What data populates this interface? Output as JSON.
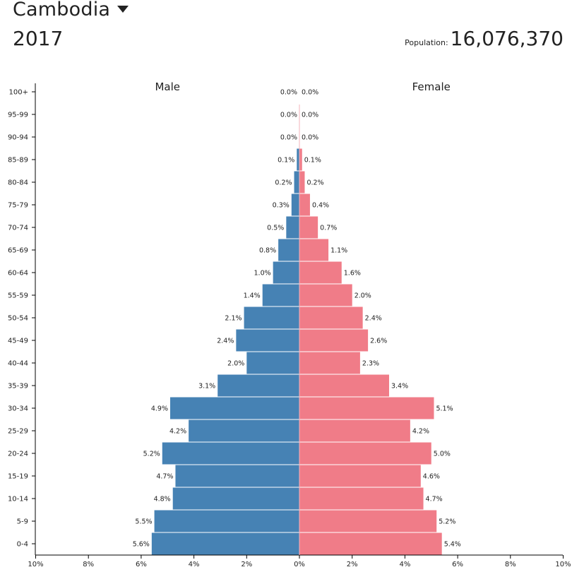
{
  "header": {
    "country": "Cambodia",
    "year": "2017",
    "population_label": "Population:",
    "population_value": "16,076,370"
  },
  "colors": {
    "male": "#4682b4",
    "female": "#f07c88"
  },
  "chart_data": {
    "type": "bar",
    "orientation": "horizontal-population-pyramid",
    "categories": [
      "0-4",
      "5-9",
      "10-14",
      "15-19",
      "20-24",
      "25-29",
      "30-34",
      "35-39",
      "40-44",
      "45-49",
      "50-54",
      "55-59",
      "60-64",
      "65-69",
      "70-74",
      "75-79",
      "80-84",
      "85-89",
      "90-94",
      "95-99",
      "100+"
    ],
    "series": [
      {
        "name": "Male",
        "values": [
          5.6,
          5.5,
          4.8,
          4.7,
          5.2,
          4.2,
          4.9,
          3.1,
          2.0,
          2.4,
          2.1,
          1.4,
          1.0,
          0.8,
          0.5,
          0.3,
          0.2,
          0.1,
          0.0,
          0.0,
          0.0
        ],
        "labels": [
          "5.6%",
          "5.5%",
          "4.8%",
          "4.7%",
          "5.2%",
          "4.2%",
          "4.9%",
          "3.1%",
          "2.0%",
          "2.4%",
          "2.1%",
          "1.4%",
          "1.0%",
          "0.8%",
          "0.5%",
          "0.3%",
          "0.2%",
          "0.1%",
          "0.0%",
          "0.0%",
          "0.0%"
        ]
      },
      {
        "name": "Female",
        "values": [
          5.4,
          5.2,
          4.7,
          4.6,
          5.0,
          4.2,
          5.1,
          3.4,
          2.3,
          2.6,
          2.4,
          2.0,
          1.6,
          1.1,
          0.7,
          0.4,
          0.2,
          0.1,
          0.0,
          0.0,
          0.0
        ],
        "labels": [
          "5.4%",
          "5.2%",
          "4.7%",
          "4.6%",
          "5.0%",
          "4.2%",
          "5.1%",
          "3.4%",
          "2.3%",
          "2.6%",
          "2.4%",
          "2.0%",
          "1.6%",
          "1.1%",
          "0.7%",
          "0.4%",
          "0.2%",
          "0.1%",
          "0.0%",
          "0.0%",
          "0.0%"
        ]
      }
    ],
    "xlim": [
      -10,
      10
    ],
    "x_ticks": [
      -10,
      -8,
      -6,
      -4,
      -2,
      0,
      2,
      4,
      6,
      8,
      10
    ],
    "x_tick_labels": [
      "10%",
      "8%",
      "6%",
      "4%",
      "2%",
      "0%",
      "2%",
      "4%",
      "6%",
      "8%",
      "10%"
    ],
    "grid": false,
    "legend": "series names as headers above each side"
  }
}
